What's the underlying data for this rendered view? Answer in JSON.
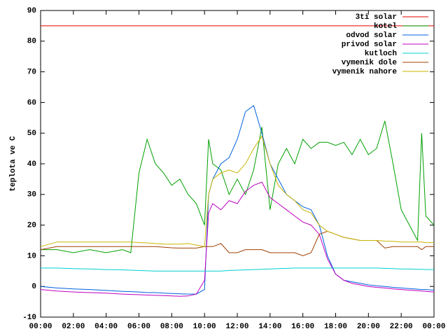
{
  "chart_data": {
    "type": "line",
    "y_label": "teplota ve C",
    "xlim": [
      0,
      24
    ],
    "ylim": [
      -10,
      90
    ],
    "yticks": [
      -10,
      0,
      10,
      20,
      30,
      40,
      50,
      60,
      70,
      80,
      90
    ],
    "xticks": [
      {
        "value": 0,
        "label": "00:00"
      },
      {
        "value": 2,
        "label": "02:00"
      },
      {
        "value": 4,
        "label": "04:00"
      },
      {
        "value": 6,
        "label": "06:00"
      },
      {
        "value": 8,
        "label": "08:00"
      },
      {
        "value": 10,
        "label": "10:00"
      },
      {
        "value": 12,
        "label": "12:00"
      },
      {
        "value": 14,
        "label": "14:00"
      },
      {
        "value": 16,
        "label": "16:00"
      },
      {
        "value": 18,
        "label": "18:00"
      },
      {
        "value": 20,
        "label": "20:00"
      },
      {
        "value": 22,
        "label": "22:00"
      },
      {
        "value": 24,
        "label": "00:00"
      }
    ],
    "grid": false,
    "legend": "top right",
    "x": [
      0,
      1,
      2,
      3,
      4,
      5,
      5.5,
      6,
      6.5,
      7,
      7.5,
      8,
      8.5,
      9,
      9.5,
      10,
      10.25,
      10.5,
      11,
      11.5,
      12,
      12.5,
      13,
      13.5,
      14,
      14.5,
      15,
      15.5,
      16,
      16.5,
      17,
      17.5,
      18,
      18.5,
      19,
      19.5,
      20,
      20.5,
      21,
      21.5,
      22,
      22.5,
      23,
      23.25,
      23.5,
      24
    ],
    "series": [
      {
        "name": "3ti solar",
        "color": "#e00000",
        "values": [
          85,
          85,
          85,
          85,
          85,
          85,
          85,
          85,
          85,
          85,
          85,
          85,
          85,
          85,
          85,
          85,
          85,
          85,
          85,
          85,
          85,
          85,
          85,
          85,
          85,
          85,
          85,
          85,
          85,
          85,
          85,
          85,
          85,
          85,
          85,
          85,
          85,
          85,
          85,
          85,
          85,
          85,
          85,
          85,
          85,
          85
        ]
      },
      {
        "name": "kotel",
        "color": "#00a000",
        "values": [
          12,
          12,
          11,
          12,
          11,
          12,
          11,
          37,
          48,
          40,
          37,
          33,
          35,
          30,
          27,
          20,
          48,
          40,
          38,
          30,
          35,
          30,
          38,
          52,
          25,
          40,
          45,
          40,
          48,
          45,
          47,
          47,
          46,
          47,
          43,
          48,
          43,
          45,
          54,
          40,
          25,
          20,
          15,
          50,
          23,
          20
        ]
      },
      {
        "name": "odvod solar",
        "color": "#0060e0",
        "values": [
          0,
          -0.5,
          -0.8,
          -1,
          -1.3,
          -1.6,
          -1.7,
          -1.8,
          -2,
          -2,
          -2.2,
          -2.3,
          -2.4,
          -2.5,
          -2.5,
          -1,
          30,
          35,
          40,
          42,
          48,
          57,
          59,
          50,
          40,
          35,
          30,
          28,
          26,
          25,
          20,
          10,
          4,
          2,
          1.5,
          1,
          0.5,
          0.2,
          0,
          -0.3,
          -0.5,
          -0.7,
          -0.9,
          -1,
          -1,
          -1.2
        ]
      },
      {
        "name": "privod solar",
        "color": "#c000c0",
        "values": [
          -1,
          -1.5,
          -1.8,
          -2,
          -2.2,
          -2.5,
          -2.6,
          -2.7,
          -2.8,
          -2.9,
          -3,
          -3.1,
          -3.2,
          -3.1,
          -2.5,
          2,
          24,
          27,
          25,
          28,
          27,
          31,
          33,
          34,
          29,
          27,
          25,
          23,
          21,
          20,
          17,
          9,
          4,
          2,
          1,
          0.5,
          0,
          -0.3,
          -0.5,
          -0.8,
          -1,
          -1.2,
          -1.4,
          -1.5,
          -1.6,
          -1.8
        ]
      },
      {
        "name": "kutloch",
        "color": "#00d0d0",
        "values": [
          6,
          6,
          5.8,
          5.7,
          5.5,
          5.4,
          5.3,
          5.2,
          5.1,
          5,
          5,
          5,
          5,
          5,
          5,
          5,
          5,
          5,
          5,
          5.2,
          5.3,
          5.4,
          5.5,
          5.6,
          5.7,
          5.8,
          5.9,
          6,
          6,
          6,
          6,
          6,
          6,
          6,
          6,
          6,
          6,
          6,
          5.9,
          5.8,
          5.7,
          5.7,
          5.6,
          5.6,
          5.5,
          5.5
        ]
      },
      {
        "name": "vymenik dole",
        "color": "#a04000",
        "values": [
          12,
          13,
          13,
          13,
          13,
          13,
          13,
          13,
          13,
          13,
          12.8,
          12.6,
          12.5,
          12.5,
          12.5,
          13,
          13,
          13,
          14,
          11,
          11,
          12,
          12,
          12,
          11,
          11,
          11,
          11,
          10,
          11,
          17,
          18,
          17,
          16,
          15.5,
          15,
          15,
          15,
          12.5,
          13,
          13,
          13,
          13,
          12,
          13,
          13
        ]
      },
      {
        "name": "vymenik nahore",
        "color": "#c8b400",
        "values": [
          13,
          14.5,
          14.5,
          14.5,
          14.5,
          14.5,
          14.5,
          14.3,
          14.2,
          14,
          13.8,
          13.8,
          13.8,
          14,
          13.5,
          13,
          30,
          35,
          37,
          38,
          37,
          40,
          45,
          49,
          40,
          33,
          30,
          28,
          25,
          24,
          20,
          18,
          17,
          16,
          15.5,
          15,
          15,
          15,
          14.8,
          14.7,
          14.5,
          14.5,
          14.5,
          14.5,
          14.3,
          14.3
        ]
      }
    ]
  }
}
